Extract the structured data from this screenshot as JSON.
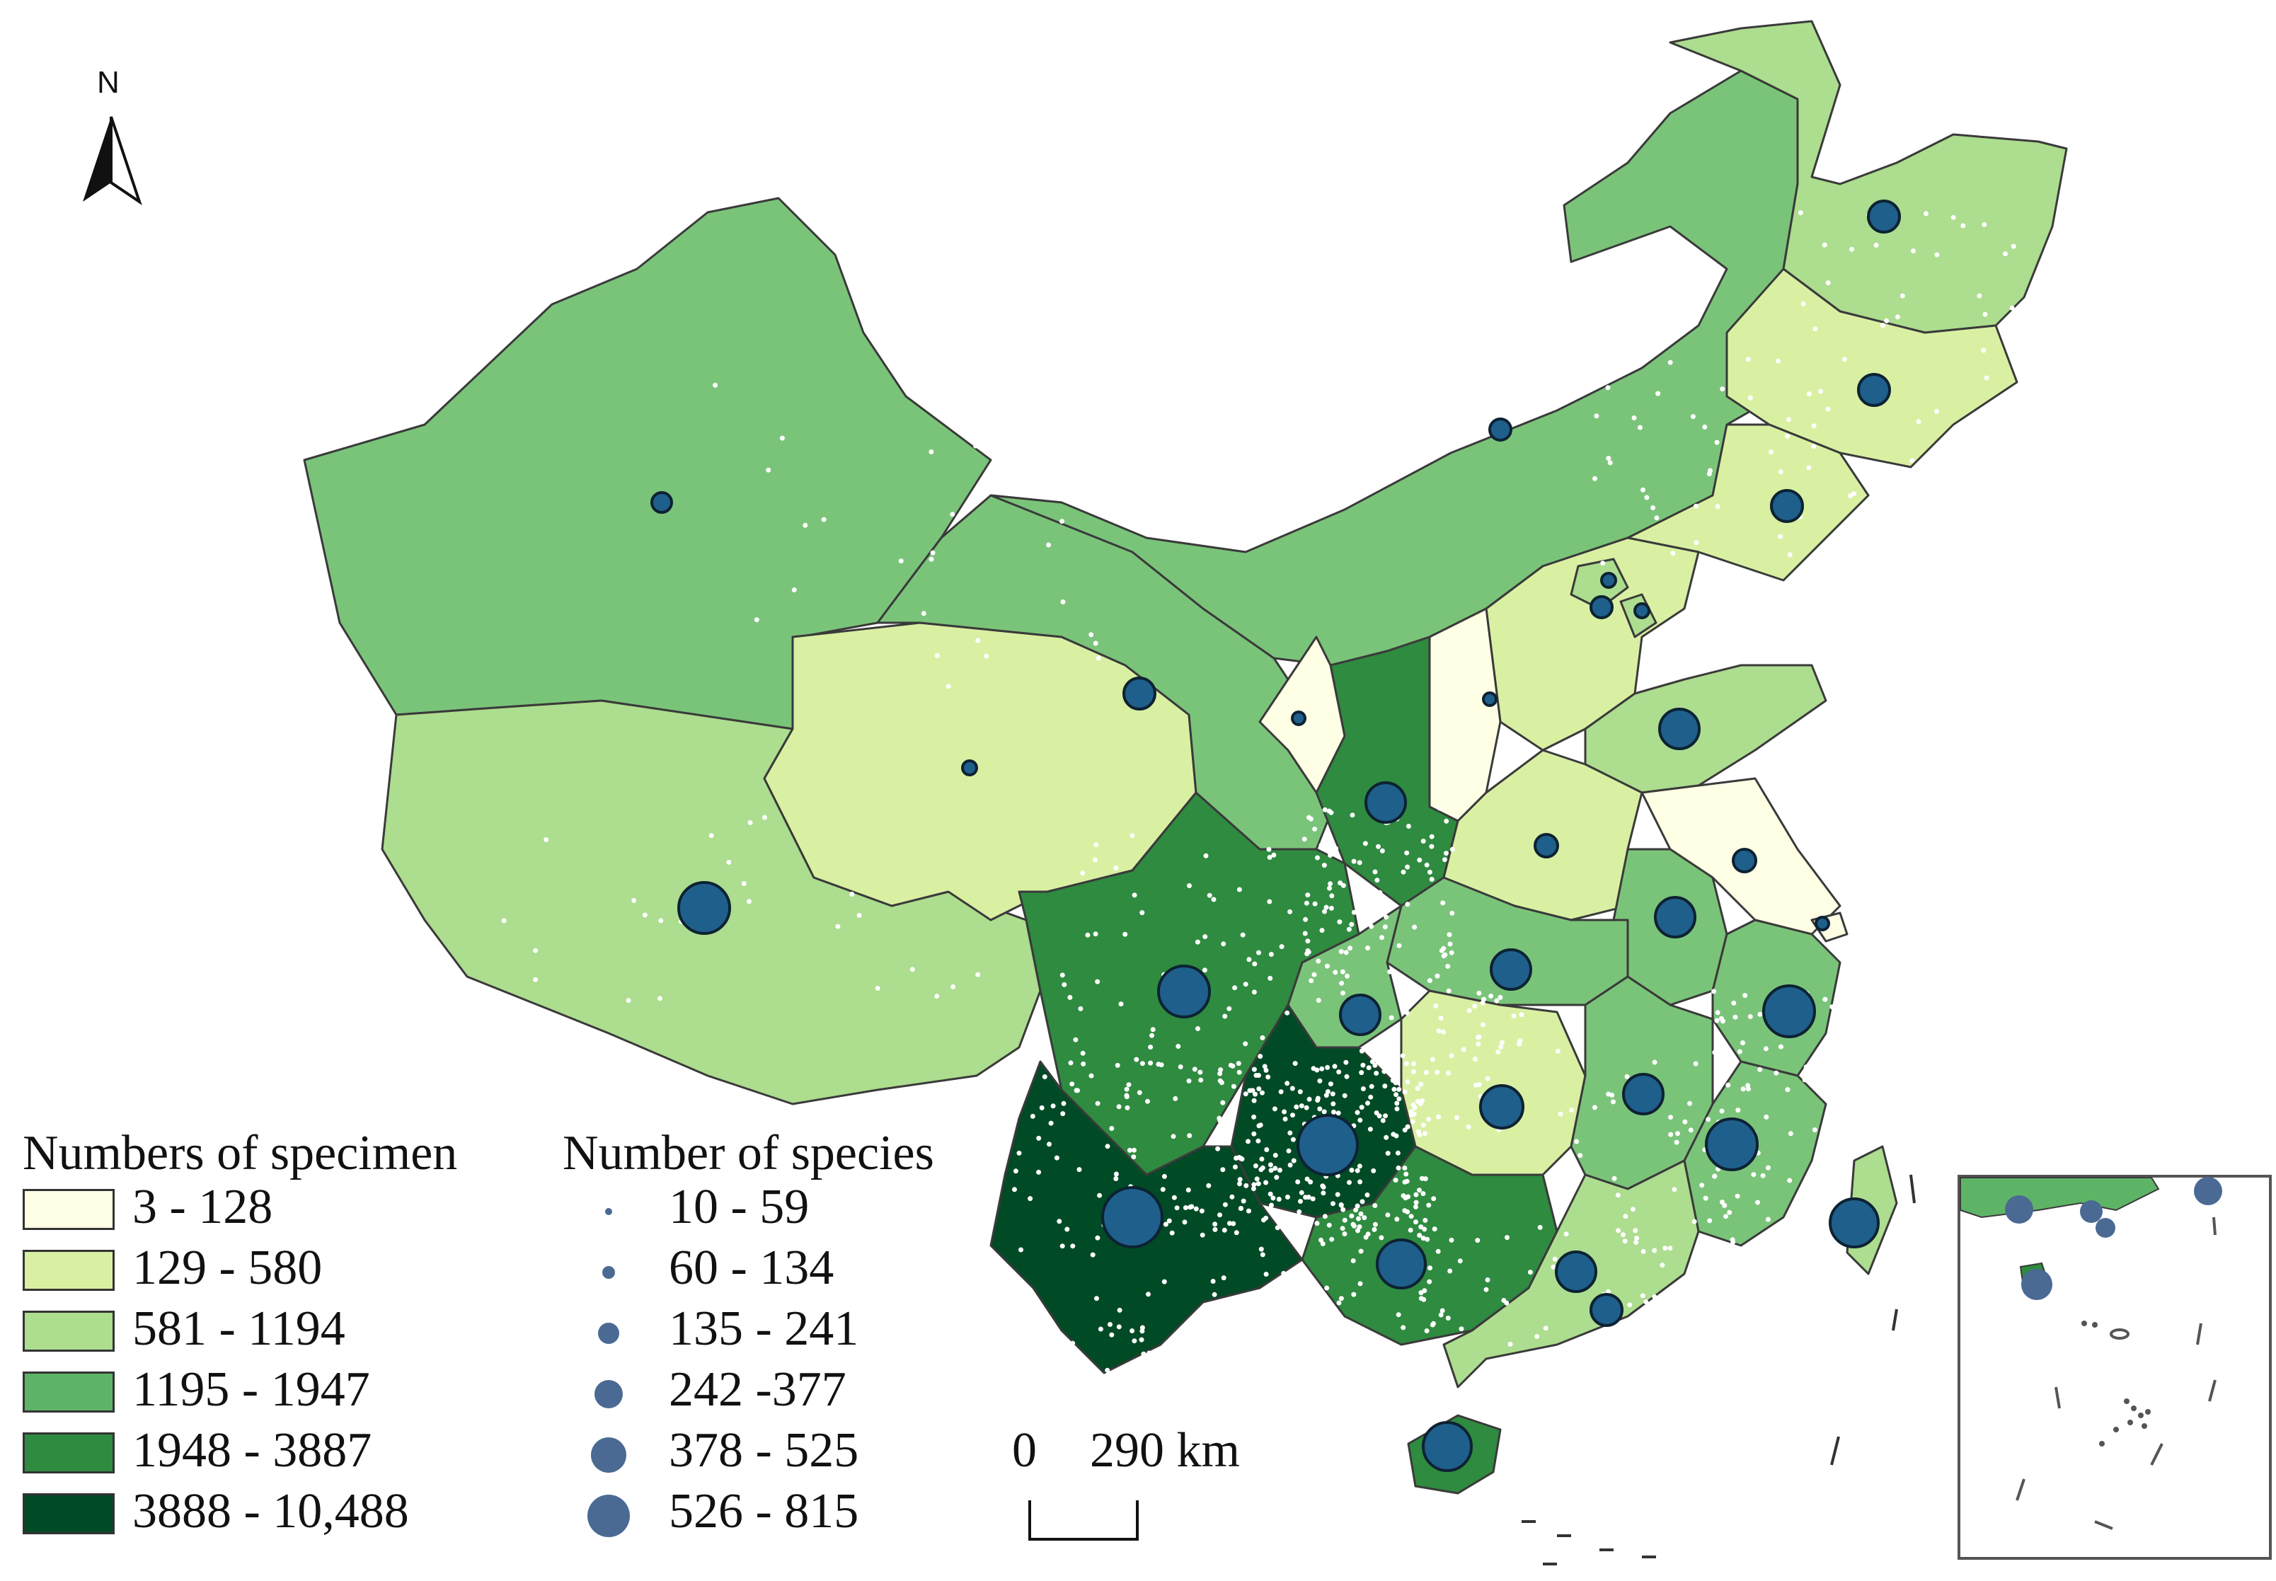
{
  "legend_specimen": {
    "title": "Numbers of specimen",
    "classes": [
      {
        "label": "3 - 128",
        "color": "#ffffe5"
      },
      {
        "label": "129 - 580",
        "color": "#d9f0a3"
      },
      {
        "label": "581 - 1194",
        "color": "#addd8e"
      },
      {
        "label": "1195 - 1947",
        "color": "#5eb466"
      },
      {
        "label": "1948 - 3887",
        "color": "#2e8b3f"
      },
      {
        "label": "3888 - 10,488",
        "color": "#004a25"
      }
    ]
  },
  "legend_species": {
    "title": "Number of species",
    "classes": [
      {
        "label": "10 - 59"
      },
      {
        "label": "60 - 134"
      },
      {
        "label": "135 - 241"
      },
      {
        "label": "242 -377"
      },
      {
        "label": "378 - 525"
      },
      {
        "label": "526 - 815"
      }
    ],
    "color": "#4a6a94"
  },
  "north_arrow": {
    "label": "N"
  },
  "scale_bar": {
    "zero": "0",
    "label": "290 km"
  },
  "colors": {
    "border": "#3a3a3a",
    "species_circle": "#1f5f8b",
    "inset_circle": "#4a6a94"
  }
}
